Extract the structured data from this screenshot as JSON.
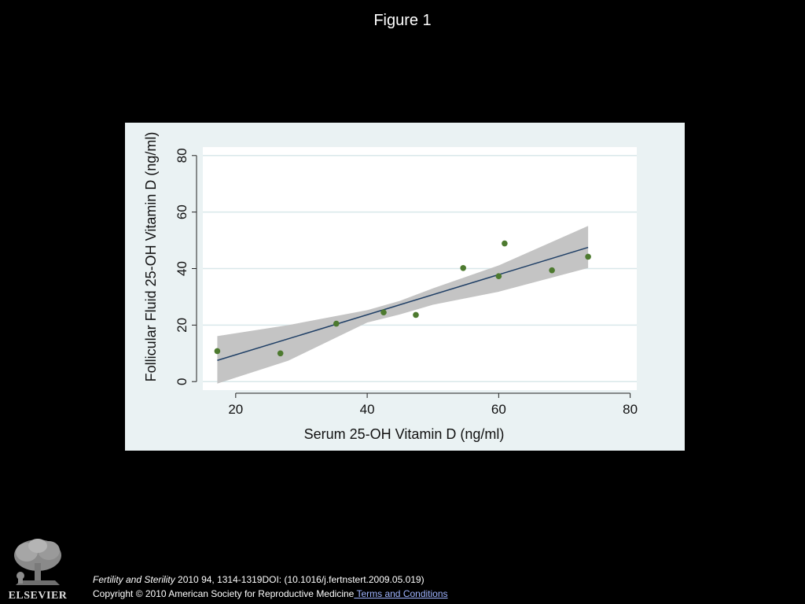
{
  "header": {
    "title": "Figure 1"
  },
  "chart_data": {
    "type": "scatter",
    "title": "",
    "xlabel": "Serum 25-OH Vitamin D (ng/ml)",
    "ylabel": "Follicular Fluid 25-OH Vitamin D (ng/ml)",
    "xlim": [
      15,
      81
    ],
    "ylim": [
      -3,
      83
    ],
    "xticks": [
      20,
      40,
      60,
      80
    ],
    "yticks": [
      0,
      20,
      40,
      60,
      80
    ],
    "grid": "horizontal",
    "legend": "none",
    "points": [
      {
        "x": 17.2,
        "y": 10.8
      },
      {
        "x": 26.8,
        "y": 10.0
      },
      {
        "x": 35.3,
        "y": 20.5
      },
      {
        "x": 42.5,
        "y": 24.5
      },
      {
        "x": 47.4,
        "y": 23.6
      },
      {
        "x": 54.6,
        "y": 40.2
      },
      {
        "x": 60.0,
        "y": 37.3
      },
      {
        "x": 60.9,
        "y": 48.9
      },
      {
        "x": 68.1,
        "y": 39.4
      },
      {
        "x": 73.6,
        "y": 44.2
      }
    ],
    "fit_line": {
      "x": [
        17.2,
        73.6
      ],
      "y": [
        7.5,
        47.5
      ]
    },
    "confidence_band": {
      "x": [
        17.2,
        28,
        40,
        45,
        50,
        60,
        73.6
      ],
      "upper": [
        16.1,
        20.0,
        25.3,
        28.6,
        33.0,
        41.1,
        55.1
      ],
      "lower": [
        -0.7,
        7.4,
        20.9,
        23.8,
        27.2,
        31.8,
        40.2
      ]
    },
    "colors": {
      "point": "#4d7a2f",
      "fit_line": "#1f3f66",
      "band": "#c4c4c4",
      "plot_bg": "#ffffff",
      "outer_bg": "#eaf2f3",
      "grid": "#d9e8ea"
    }
  },
  "footer": {
    "journal": "Fertility and Sterility",
    "citation": " 2010 94, 1314-1319DOI: (10.1016/j.fertnstert.2009.05.019)",
    "copyright": "Copyright © 2010 American Society for Reproductive Medicine",
    "terms_link": " Terms and Conditions"
  },
  "logo": {
    "icon": "tree-logo-icon",
    "text": "ELSEVIER"
  }
}
